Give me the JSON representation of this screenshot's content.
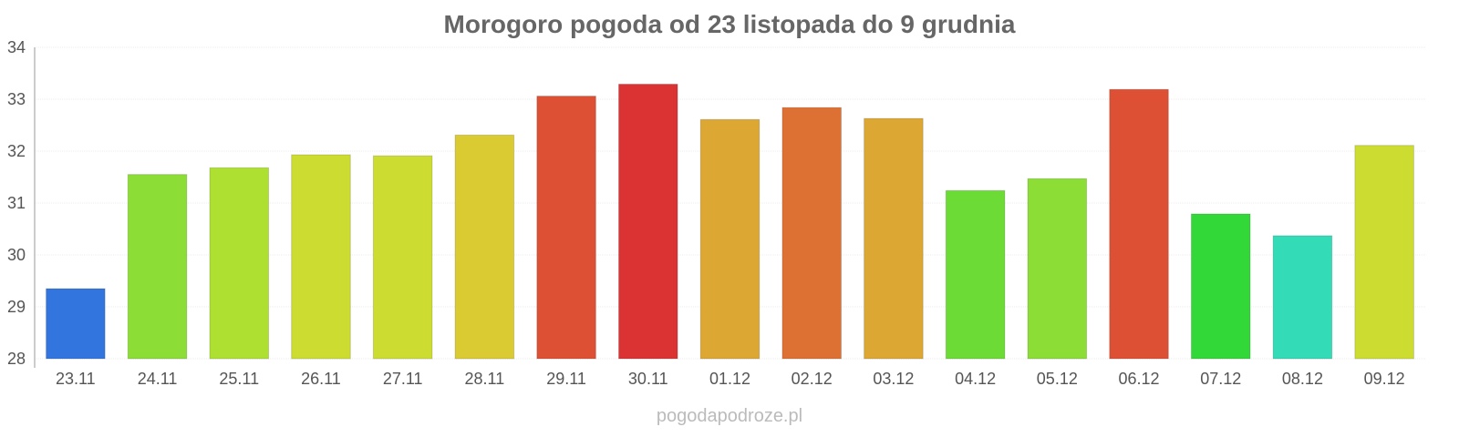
{
  "chart_data": {
    "type": "bar",
    "title": "Morogoro pogoda od 23 listopada do 9 grudnia",
    "xlabel": "",
    "ylabel": "",
    "ylim": [
      28,
      34
    ],
    "yticks": [
      "28",
      "29",
      "30",
      "31",
      "32",
      "33",
      "34"
    ],
    "grid": true,
    "categories": [
      "23.11",
      "24.11",
      "25.11",
      "26.11",
      "27.11",
      "28.11",
      "29.11",
      "30.11",
      "01.12",
      "02.12",
      "03.12",
      "04.12",
      "05.12",
      "06.12",
      "07.12",
      "08.12",
      "09.12"
    ],
    "values": [
      29.35,
      31.55,
      31.68,
      31.93,
      31.91,
      32.31,
      33.06,
      33.29,
      32.61,
      32.84,
      32.63,
      31.24,
      31.47,
      33.19,
      30.79,
      30.37,
      32.11
    ],
    "colors": [
      "#3275DE",
      "#8CDD35",
      "#AEE032",
      "#CDDC31",
      "#CDDC31",
      "#DBCB32",
      "#DD5034",
      "#DB3333",
      "#DCA733",
      "#DD7133",
      "#DCA733",
      "#6CDB35",
      "#8CDD35",
      "#DD5034",
      "#31D838",
      "#33DBB7",
      "#CDDC31"
    ]
  },
  "footer": "pogodapodroze.pl"
}
